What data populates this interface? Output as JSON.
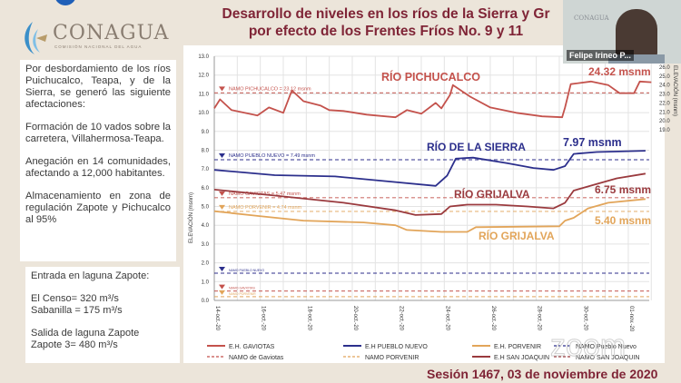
{
  "logo": {
    "name": "CONAGUA",
    "subtitle": "COMISIÓN NACIONAL DEL AGUA"
  },
  "title_line1": "Desarrollo de niveles en los ríos de la Sierra y Gr",
  "title_line2": "por efecto de los Frentes Fríos No. 9 y 11",
  "left_panel": {
    "box1": [
      "Por desbordamiento de los ríos Puichucalco, Teapa, y de la Sierra, se generó las siguiente afectaciones:",
      "Formación de 10 vados sobre la carretera, Villahermosa-Teapa.",
      "Anegación en 14 comunidades, afectando a 12,000 habitantes.",
      "Almacenamiento en zona de regulación Zapote y Pichucalco al 95%"
    ],
    "box2": [
      "Entrada en laguna Zapote:",
      "El Censo= 320 m³/s",
      "Sabanilla = 175 m³/s",
      "Salida de laguna Zapote",
      "Zapote 3= 480 m³/s"
    ]
  },
  "video": {
    "participant_name": "Felipe Irineo P...",
    "background_logo": "CONAGUA"
  },
  "footer": {
    "session": "Sesión 1467, 03 de noviembre de 2020"
  },
  "watermark": "zoom",
  "colors": {
    "gaviotas": "#c4524c",
    "pueblo_nuevo": "#2c2f8c",
    "porvenir": "#e2a55a",
    "san_joaquin": "#9a3a3e",
    "title": "#7f2436"
  },
  "chart_data": {
    "type": "line",
    "ylabel": "ELEVACIÓN (msnm)",
    "y2label": "ELEVACIÓN (msnm)",
    "ylim": [
      0,
      13
    ],
    "yticks": [
      "0.0",
      "1.0",
      "2.0",
      "3.0",
      "4.0",
      "5.0",
      "6.0",
      "7.0",
      "8.0",
      "9.0",
      "10.0",
      "11.0",
      "12.0",
      "13.0"
    ],
    "y2lim": [
      19,
      26
    ],
    "y2ticks": [
      "19.0",
      "20.0",
      "21.0",
      "22.0",
      "23.0",
      "24.0",
      "25.0",
      "26.0"
    ],
    "xticks": [
      "14-oct.-20",
      "16-oct.-20",
      "18-oct.-20",
      "20-oct.-20",
      "22-oct.-20",
      "24-oct.-20",
      "26-oct.-20",
      "28-oct.-20",
      "30-oct.-20",
      "01-nov.-20"
    ],
    "xtick_dates": [
      "2020-10-14",
      "2020-10-16",
      "2020-10-18",
      "2020-10-20",
      "2020-10-22",
      "2020-10-24",
      "2020-10-26",
      "2020-10-28",
      "2020-10-30",
      "2020-11-01"
    ],
    "grid": true,
    "legend_position": "bottom",
    "series": [
      {
        "name": "E.H. GAVIOTAS",
        "axis": "right",
        "color": "#c4524c",
        "x": [
          "2020-10-14T00:00",
          "2020-10-14T06:00",
          "2020-10-14T18:00",
          "2020-10-15T21:00",
          "2020-10-16T09:00",
          "2020-10-17T00:00",
          "2020-10-17T09:00",
          "2020-10-17T21:00",
          "2020-10-18T15:00",
          "2020-10-19T00:00",
          "2020-10-19T15:00",
          "2020-10-20T15:00",
          "2020-10-21T21:00",
          "2020-10-22T09:00",
          "2020-10-23T00:00",
          "2020-10-23T15:00",
          "2020-10-23T21:00",
          "2020-10-24T06:00",
          "2020-10-24T09:00",
          "2020-10-25T03:00",
          "2020-10-26T00:00",
          "2020-10-27T03:00",
          "2020-10-28T06:00",
          "2020-10-29T03:00",
          "2020-10-29T06:00",
          "2020-10-29T12:00",
          "2020-10-30T09:00",
          "2020-10-31T03:00",
          "2020-10-31T15:00",
          "2020-11-01T06:00",
          "2020-11-01T12:00",
          "2020-11-02T00:00"
        ],
        "y": [
          21.4,
          22.4,
          21.2,
          20.6,
          21.5,
          20.9,
          23.4,
          22.2,
          21.7,
          21.2,
          21.1,
          20.7,
          20.4,
          21.2,
          20.8,
          22.0,
          21.4,
          22.9,
          24.0,
          22.7,
          21.5,
          20.9,
          20.5,
          20.4,
          21.5,
          24.1,
          24.4,
          24.0,
          23.1,
          23.1,
          24.4,
          24.32
        ]
      },
      {
        "name": "E.H PUEBLO NUEVO",
        "axis": "left",
        "color": "#2c2f8c",
        "x": [
          "2020-10-14T00:00",
          "2020-10-16T15:00",
          "2020-10-19T06:00",
          "2020-10-21T21:00",
          "2020-10-23T15:00",
          "2020-10-24T03:00",
          "2020-10-24T12:00",
          "2020-10-25T06:00",
          "2020-10-26T18:00",
          "2020-10-27T21:00",
          "2020-10-28T18:00",
          "2020-10-29T06:00",
          "2020-10-29T15:00",
          "2020-10-30T15:00",
          "2020-11-01T18:00"
        ],
        "y": [
          6.95,
          6.67,
          6.6,
          6.3,
          6.1,
          6.65,
          7.55,
          7.6,
          7.3,
          7.05,
          6.95,
          7.15,
          7.8,
          7.9,
          7.97
        ]
      },
      {
        "name": "E.H. PORVENIR",
        "axis": "left",
        "color": "#e2a55a",
        "x": [
          "2020-10-14T00:00",
          "2020-10-15T21:00",
          "2020-10-17T21:00",
          "2020-10-20T12:00",
          "2020-10-21T21:00",
          "2020-10-22T09:00",
          "2020-10-23T21:00",
          "2020-10-25T00:00",
          "2020-10-25T09:00",
          "2020-10-29T00:00",
          "2020-10-29T06:00",
          "2020-10-29T15:00",
          "2020-10-30T06:00",
          "2020-10-31T03:00",
          "2020-11-01T18:00"
        ],
        "y": [
          4.75,
          4.5,
          4.25,
          4.15,
          4.0,
          3.75,
          3.65,
          3.65,
          3.9,
          3.95,
          4.25,
          4.4,
          4.9,
          5.2,
          5.4
        ]
      },
      {
        "name": "E.H SAN JOAQUIN",
        "axis": "left",
        "color": "#9a3a3e",
        "x": [
          "2020-10-14T00:00",
          "2020-10-16T12:00",
          "2020-10-19T15:00",
          "2020-10-21T21:00",
          "2020-10-22T18:00",
          "2020-10-23T21:00",
          "2020-10-24T06:00",
          "2020-10-25T00:00",
          "2020-10-26T06:00",
          "2020-10-27T15:00",
          "2020-10-28T18:00",
          "2020-10-29T06:00",
          "2020-10-29T15:00",
          "2020-10-30T15:00",
          "2020-10-31T12:00",
          "2020-11-01T18:00"
        ],
        "y": [
          5.9,
          5.6,
          5.2,
          4.8,
          4.55,
          4.6,
          5.0,
          5.1,
          5.1,
          5.0,
          4.9,
          5.2,
          5.85,
          6.2,
          6.5,
          6.75
        ]
      }
    ],
    "reference_lines": [
      {
        "name": "NAMO de Gaviotas",
        "label": "NAMO PICHUCALCO = 23.12 msnm",
        "axis": "right",
        "value": 23.12,
        "color": "#c4524c"
      },
      {
        "name": "NAMO Pueblo Nuevo",
        "label": "NAMO PUEBLO NUEVO = 7.49 msnm",
        "axis": "left",
        "value": 7.49,
        "color": "#2c2f8c"
      },
      {
        "name": "NAMO SAN JOAQUIN",
        "label": "NAMO GAVIOTAS = 5.47 msnm",
        "axis": "left",
        "value": 5.47,
        "color": "#c4524c"
      },
      {
        "name": "NAMO PORVENIR",
        "label": "NAMO PORVENIR = 4.74 msnm",
        "axis": "left",
        "value": 4.74,
        "color": "#e2a55a"
      },
      {
        "name": "NAMO Pueblo Nuevo (low)",
        "label": "NAMO PUEBLO NUEVO",
        "axis": "left",
        "value": 1.45,
        "color": "#2c2f8c"
      },
      {
        "name": "NAMO de Gaviotas (low)",
        "label": "NAMO GAVIOTAS",
        "axis": "left",
        "value": 0.5,
        "color": "#c4524c"
      },
      {
        "name": "NAMO PORVENIR (low)",
        "label": "NAMO PORVENIR",
        "axis": "left",
        "value": 0.2,
        "color": "#e2a55a"
      }
    ],
    "annotations": {
      "pichucalco": "RÍO PICHUCALCO",
      "pichucalco_value": "24.32 msnm",
      "sierra": "RÍO DE LA SIERRA",
      "sierra_value": "7.97 msnm",
      "grijalva_1": "RÍO GRIJALVA",
      "grijalva_1_value": "6.75 msnm",
      "grijalva_2": "RÍO GRIJALVA",
      "grijalva_2_value": "5.40 msnm"
    },
    "legend": [
      {
        "label": "E.H. GAVIOTAS",
        "color": "#c4524c",
        "style": "solid"
      },
      {
        "label": "E.H PUEBLO NUEVO",
        "color": "#2c2f8c",
        "style": "solid"
      },
      {
        "label": "E.H. PORVENIR",
        "color": "#e2a55a",
        "style": "solid"
      },
      {
        "label": "NAMO Pueblo Nuevo",
        "color": "#2c2f8c",
        "style": "dashed"
      },
      {
        "label": "NAMO de Gaviotas",
        "color": "#c4524c",
        "style": "dashed"
      },
      {
        "label": "NAMO PORVENIR",
        "color": "#e2a55a",
        "style": "dashed"
      },
      {
        "label": "E.H SAN JOAQUIN",
        "color": "#9a3a3e",
        "style": "solid"
      },
      {
        "label": "NAMO SAN JOAQUIN",
        "color": "#9a3a3e",
        "style": "dashed"
      }
    ]
  }
}
